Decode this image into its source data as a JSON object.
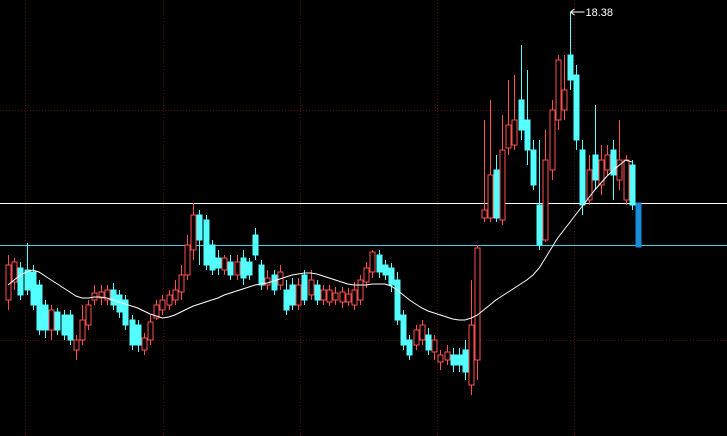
{
  "chart_data": {
    "type": "candlestick",
    "ylim": [
      9.9,
      18.62
    ],
    "up_color": "#ff4f4f",
    "down_color": "#54ffff",
    "last_color": "#1a8cdc",
    "ma_color": "#ffffff",
    "hlines": [
      {
        "value": 14.56,
        "color": "#ffffff"
      },
      {
        "value": 13.72,
        "color": "#3fd0e0"
      }
    ],
    "max_label": 18.38,
    "ohlc": [
      [
        12.62,
        13.52,
        12.42,
        13.32
      ],
      [
        12.98,
        13.46,
        12.82,
        13.38
      ],
      [
        13.26,
        13.38,
        12.62,
        12.72
      ],
      [
        13.22,
        13.76,
        12.72,
        12.82
      ],
      [
        13.18,
        13.32,
        12.42,
        12.52
      ],
      [
        12.92,
        13.02,
        11.92,
        12.02
      ],
      [
        12.52,
        12.62,
        11.86,
        12.02
      ],
      [
        12.02,
        12.52,
        11.82,
        12.42
      ],
      [
        12.38,
        12.46,
        11.92,
        12.02
      ],
      [
        12.32,
        12.42,
        11.82,
        11.92
      ],
      [
        12.32,
        12.42,
        11.72,
        11.82
      ],
      [
        11.62,
        11.92,
        11.42,
        11.82
      ],
      [
        11.82,
        12.52,
        11.72,
        12.22
      ],
      [
        12.12,
        12.62,
        12.02,
        12.52
      ],
      [
        12.62,
        12.92,
        12.52,
        12.76
      ],
      [
        12.66,
        12.92,
        12.52,
        12.78
      ],
      [
        12.62,
        12.92,
        12.52,
        12.82
      ],
      [
        12.82,
        12.96,
        12.42,
        12.52
      ],
      [
        12.72,
        12.82,
        12.26,
        12.38
      ],
      [
        12.62,
        12.72,
        12.02,
        12.12
      ],
      [
        12.22,
        12.32,
        11.62,
        11.72
      ],
      [
        12.12,
        12.22,
        11.58,
        11.72
      ],
      [
        11.62,
        11.96,
        11.52,
        11.86
      ],
      [
        11.82,
        12.32,
        11.72,
        12.18
      ],
      [
        12.26,
        12.62,
        12.22,
        12.52
      ],
      [
        12.42,
        12.72,
        12.32,
        12.62
      ],
      [
        12.52,
        12.82,
        12.42,
        12.72
      ],
      [
        12.62,
        13.02,
        12.52,
        12.82
      ],
      [
        12.78,
        13.32,
        12.62,
        13.12
      ],
      [
        13.12,
        13.92,
        13.02,
        13.72
      ],
      [
        13.62,
        14.56,
        13.42,
        14.32
      ],
      [
        14.32,
        14.42,
        13.32,
        13.82
      ],
      [
        14.22,
        14.32,
        13.22,
        13.32
      ],
      [
        13.72,
        13.82,
        13.12,
        13.22
      ],
      [
        13.46,
        13.62,
        13.12,
        13.26
      ],
      [
        13.22,
        13.52,
        13.12,
        13.46
      ],
      [
        13.38,
        13.52,
        13.02,
        13.12
      ],
      [
        13.12,
        13.52,
        13.02,
        13.38
      ],
      [
        13.46,
        13.62,
        12.92,
        13.06
      ],
      [
        13.38,
        13.46,
        13.02,
        13.12
      ],
      [
        13.92,
        14.06,
        13.42,
        13.52
      ],
      [
        13.32,
        13.42,
        12.82,
        12.92
      ],
      [
        12.92,
        13.22,
        12.82,
        13.06
      ],
      [
        13.12,
        13.22,
        12.72,
        12.82
      ],
      [
        12.92,
        13.32,
        12.82,
        13.18
      ],
      [
        12.82,
        13.02,
        12.32,
        12.42
      ],
      [
        12.92,
        13.06,
        12.42,
        12.52
      ],
      [
        12.52,
        13.06,
        12.42,
        12.92
      ],
      [
        13.12,
        13.22,
        12.52,
        12.62
      ],
      [
        12.72,
        13.22,
        12.62,
        13.02
      ],
      [
        12.92,
        13.02,
        12.52,
        12.62
      ],
      [
        12.62,
        12.92,
        12.52,
        12.82
      ],
      [
        12.58,
        12.92,
        12.5,
        12.82
      ],
      [
        12.62,
        12.88,
        12.52,
        12.76
      ],
      [
        12.58,
        12.88,
        12.46,
        12.78
      ],
      [
        12.58,
        12.86,
        12.5,
        12.74
      ],
      [
        12.52,
        12.98,
        12.42,
        12.82
      ],
      [
        12.62,
        13.12,
        12.52,
        13.02
      ],
      [
        12.98,
        13.38,
        12.86,
        13.26
      ],
      [
        13.18,
        13.62,
        13.06,
        13.58
      ],
      [
        13.52,
        13.62,
        13.06,
        13.18
      ],
      [
        13.32,
        13.42,
        13.02,
        13.12
      ],
      [
        13.26,
        13.36,
        12.78,
        12.92
      ],
      [
        13.02,
        13.18,
        12.12,
        12.22
      ],
      [
        12.32,
        12.42,
        11.62,
        11.72
      ],
      [
        11.82,
        11.92,
        11.42,
        11.52
      ],
      [
        11.72,
        12.12,
        11.62,
        12.02
      ],
      [
        11.82,
        12.22,
        11.72,
        12.12
      ],
      [
        11.92,
        12.06,
        11.52,
        11.62
      ],
      [
        11.58,
        11.92,
        11.42,
        11.82
      ],
      [
        11.38,
        11.62,
        11.22,
        11.52
      ],
      [
        11.42,
        11.72,
        11.32,
        11.58
      ],
      [
        11.52,
        11.66,
        11.18,
        11.32
      ],
      [
        11.52,
        11.66,
        11.18,
        11.32
      ],
      [
        11.62,
        11.82,
        11.02,
        11.18
      ],
      [
        10.92,
        13.02,
        10.72,
        12.12
      ],
      [
        11.42,
        13.72,
        11.02,
        13.66
      ],
      [
        14.26,
        16.22,
        14.18,
        14.42
      ],
      [
        14.26,
        16.62,
        14.18,
        15.12
      ],
      [
        15.22,
        15.52,
        14.18,
        14.26
      ],
      [
        14.22,
        16.32,
        14.12,
        15.62
      ],
      [
        15.66,
        17.02,
        15.52,
        16.12
      ],
      [
        15.72,
        17.12,
        15.62,
        16.22
      ],
      [
        16.62,
        17.72,
        15.82,
        16.02
      ],
      [
        16.22,
        17.22,
        15.32,
        15.62
      ],
      [
        15.62,
        15.82,
        14.82,
        14.92
      ],
      [
        14.52,
        15.82,
        13.62,
        13.72
      ],
      [
        13.82,
        16.02,
        13.78,
        15.42
      ],
      [
        15.22,
        16.62,
        15.02,
        16.42
      ],
      [
        16.22,
        17.52,
        16.02,
        17.42
      ],
      [
        16.42,
        17.52,
        16.22,
        16.82
      ],
      [
        17.52,
        18.38,
        16.82,
        17.02
      ],
      [
        17.12,
        17.32,
        15.62,
        15.82
      ],
      [
        15.62,
        15.82,
        14.32,
        14.52
      ],
      [
        14.62,
        15.52,
        14.52,
        15.22
      ],
      [
        15.52,
        16.52,
        14.82,
        15.02
      ],
      [
        14.92,
        15.72,
        14.72,
        15.42
      ],
      [
        15.22,
        15.72,
        15.12,
        15.52
      ],
      [
        15.62,
        15.82,
        14.62,
        15.12
      ],
      [
        15.02,
        16.22,
        14.82,
        15.42
      ],
      [
        14.62,
        15.52,
        14.52,
        15.42
      ],
      [
        15.32,
        15.42,
        14.42,
        14.52
      ],
      [
        14.56,
        14.56,
        13.68,
        13.68
      ]
    ],
    "ma": [
      12.92,
      13.02,
      13.12,
      13.18,
      13.22,
      13.18,
      13.1,
      13.02,
      12.94,
      12.86,
      12.78,
      12.7,
      12.66,
      12.66,
      12.68,
      12.68,
      12.66,
      12.62,
      12.58,
      12.54,
      12.5,
      12.46,
      12.4,
      12.34,
      12.3,
      12.26,
      12.28,
      12.32,
      12.38,
      12.44,
      12.5,
      12.54,
      12.58,
      12.62,
      12.66,
      12.72,
      12.76,
      12.8,
      12.84,
      12.88,
      12.92,
      12.94,
      12.96,
      13.0,
      13.04,
      13.08,
      13.12,
      13.14,
      13.16,
      13.16,
      13.14,
      13.1,
      13.06,
      13.02,
      12.98,
      12.94,
      12.92,
      12.92,
      12.92,
      12.94,
      12.94,
      12.94,
      12.9,
      12.82,
      12.72,
      12.62,
      12.54,
      12.46,
      12.4,
      12.36,
      12.32,
      12.28,
      12.24,
      12.22,
      12.22,
      12.26,
      12.32,
      12.42,
      12.52,
      12.62,
      12.7,
      12.78,
      12.86,
      12.94,
      13.02,
      13.12,
      13.26,
      13.46,
      13.66,
      13.86,
      14.02,
      14.18,
      14.34,
      14.5,
      14.66,
      14.82,
      14.96,
      15.1,
      15.22,
      15.32,
      15.42,
      15.38,
      null
    ]
  }
}
